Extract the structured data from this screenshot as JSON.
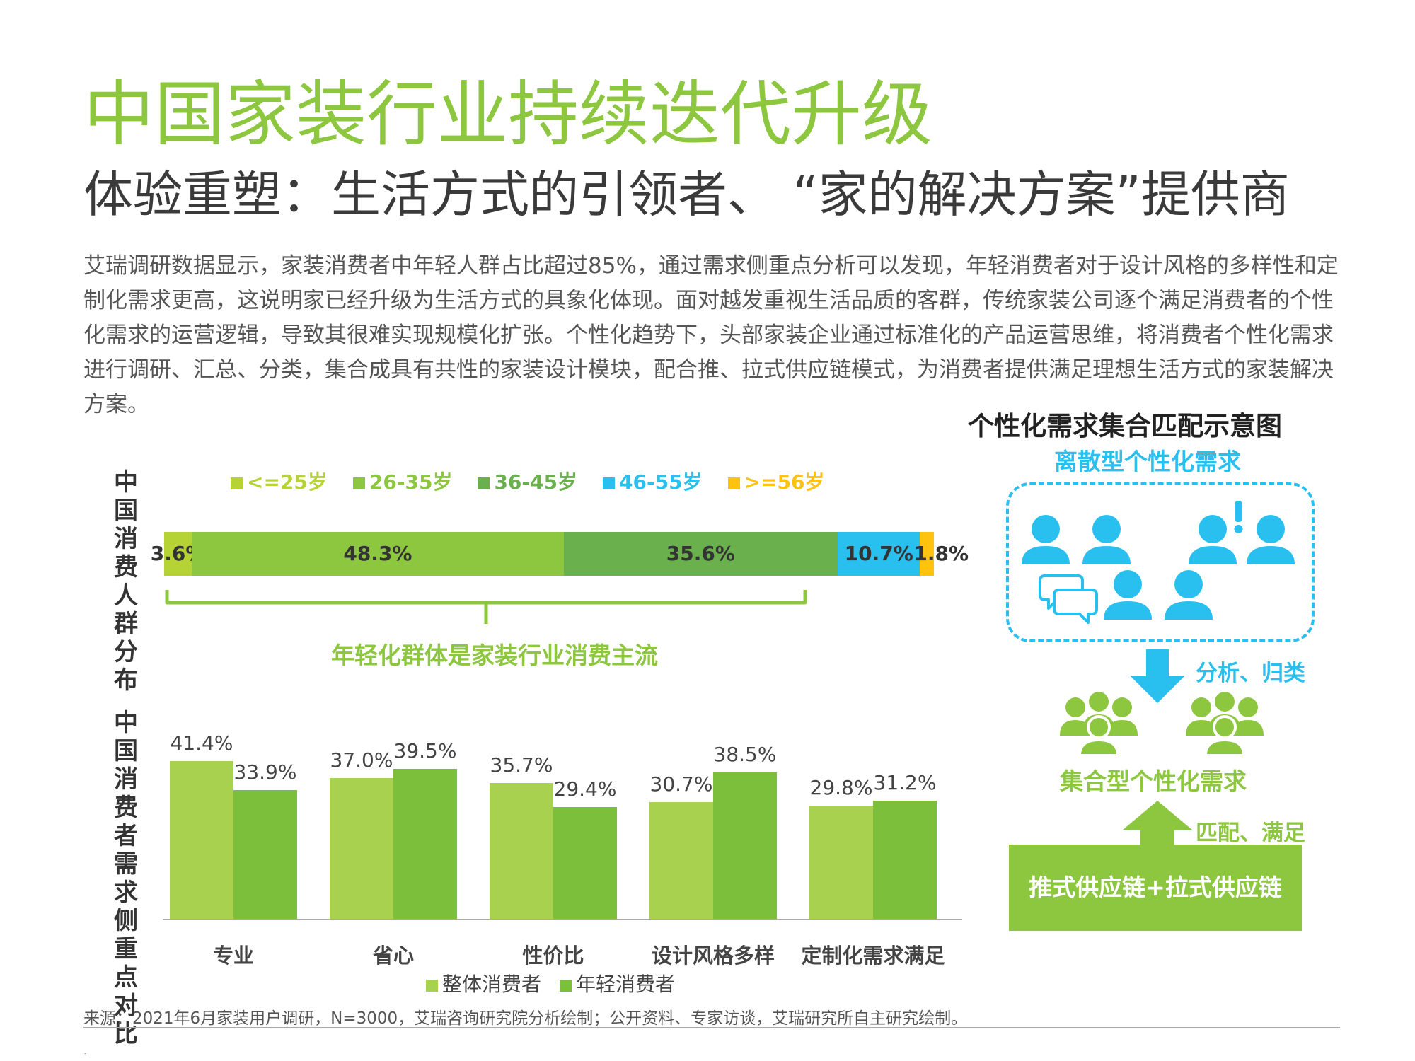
{
  "page": {
    "title": "中国家装行业持续迭代升级",
    "subtitle": "体验重塑：生活方式的引领者、 “家的解决方案”提供商",
    "body": "艾瑞调研数据显示，家装消费者中年轻人群占比超过85%，通过需求侧重点分析可以发现，年轻消费者对于设计风格的多样性和定制化需求更高，这说明家已经升级为生活方式的具象化体现。面对越发重视生活品质的客群，传统家装公司逐个满足消费者的个性化需求的运营逻辑，导致其很难实现规模化扩张。个性化趋势下，头部家装企业通过标准化的产品运营思维，将消费者个性化需求进行调研、汇总、分类，集合成具有共性的家装设计模块，配合推、拉式供应链模式，为消费者提供满足理想生活方式的家装解决方案。",
    "source": "来源：2021年6月家装用户调研，N=3000，艾瑞咨询研究院分析绘制；公开资料、专家访谈，艾瑞研究所自主研究绘制。",
    "tiny_mark": "."
  },
  "chart_data": [
    {
      "type": "bar",
      "stacked": true,
      "orientation": "horizontal",
      "ylabel": "中国消费人群分布",
      "series": [
        {
          "name": "<=25岁",
          "value": 3.6,
          "label": "3.6%",
          "color": "#b5d334"
        },
        {
          "name": "26-35岁",
          "value": 48.3,
          "label": "48.3%",
          "color": "#8dc63f"
        },
        {
          "name": "36-45岁",
          "value": 35.6,
          "label": "35.6%",
          "color": "#6ab04c"
        },
        {
          "name": "46-55岁",
          "value": 10.7,
          "label": "10.7%",
          "color": "#29c0ef"
        },
        {
          "name": ">=56岁",
          "value": 1.8,
          "label": "1.8%",
          "color": "#ffc20e"
        }
      ],
      "annotation": "年轻化群体是家装行业消费主流",
      "legend": "top"
    },
    {
      "type": "bar",
      "ylabel": "中国消费者需求侧重点对比",
      "categories": [
        "专业",
        "省心",
        "性价比",
        "设计风格多样",
        "定制化需求满足"
      ],
      "series": [
        {
          "name": "整体消费者",
          "color": "#a8d14f",
          "values": [
            41.4,
            37.0,
            35.7,
            30.7,
            29.8
          ],
          "labels": [
            "41.4%",
            "37.0%",
            "35.7%",
            "30.7%",
            "29.8%"
          ]
        },
        {
          "name": "年轻消费者",
          "color": "#7cbf3a",
          "values": [
            33.9,
            39.5,
            29.4,
            38.5,
            31.2
          ],
          "labels": [
            "33.9%",
            "39.5%",
            "29.4%",
            "38.5%",
            "31.2%"
          ]
        }
      ],
      "ylim": [
        0,
        50
      ],
      "legend": "bottom"
    }
  ],
  "diagram": {
    "title": "个性化需求集合匹配示意图",
    "discrete_label": "离散型个性化需求",
    "analyze_label": "分析、归类",
    "aggregate_label": "集合型个性化需求",
    "match_label": "匹配、满足",
    "supply_label": "推式供应链+拉式供应链",
    "colors": {
      "blue": "#29c0ef",
      "green": "#8dc63f"
    }
  }
}
